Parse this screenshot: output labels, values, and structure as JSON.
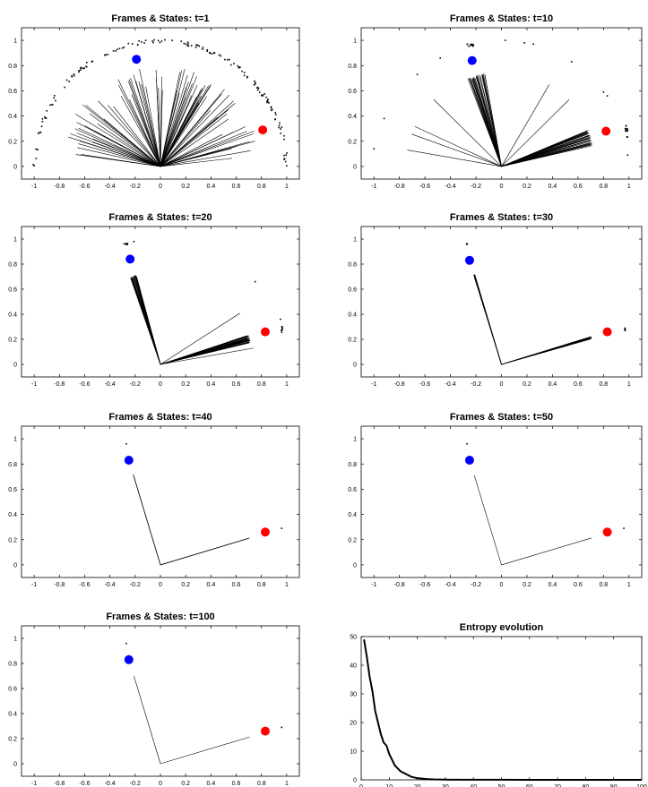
{
  "colors": {
    "axes": "#000000",
    "ink": "#000000",
    "state_a": "#0000ff",
    "state_b": "#ff0000",
    "background": "#ffffff"
  },
  "chart_data": [
    {
      "type": "scatter",
      "title": "Frames & States: t=1",
      "xlim": [
        -1.1,
        1.1
      ],
      "ylim": [
        -0.1,
        1.1
      ],
      "xticks": [
        "-1",
        "-0.8",
        "-0.6",
        "-0.4",
        "-0.2",
        "0",
        "0.2",
        "0.4",
        "0.6",
        "0.8",
        "1"
      ],
      "yticks": [
        "0",
        "0.2",
        "0.4",
        "0.6",
        "0.8",
        "1"
      ],
      "grid": false,
      "states": [
        {
          "x": -0.19,
          "y": 0.85,
          "color": "blue"
        },
        {
          "x": 0.81,
          "y": 0.29,
          "color": "red"
        }
      ],
      "frames": {
        "dist": "spread",
        "count": 90,
        "min_angle_deg": 6,
        "max_angle_deg": 174,
        "length_min": 0.55,
        "length_max": 0.8
      },
      "particles": {
        "dist": "semicircle",
        "count": 150,
        "radius": 1.0
      }
    },
    {
      "type": "scatter",
      "title": "Frames & States: t=10",
      "xlim": [
        -1.1,
        1.1
      ],
      "ylim": [
        -0.1,
        1.1
      ],
      "xticks": [
        "-1",
        "-0.8",
        "-0.6",
        "-0.4",
        "-0.2",
        "0",
        "0.2",
        "0.4",
        "0.6",
        "0.8",
        "1"
      ],
      "yticks": [
        "0",
        "0.2",
        "0.4",
        "0.6",
        "0.8",
        "1"
      ],
      "grid": false,
      "states": [
        {
          "x": -0.23,
          "y": 0.84,
          "color": "blue"
        },
        {
          "x": 0.82,
          "y": 0.28,
          "color": "red"
        }
      ],
      "frames": {
        "dist": "two_clusters",
        "clusters": [
          {
            "center_deg": 105,
            "spread_deg": 6,
            "count": 30,
            "length": 0.75
          },
          {
            "center_deg": 18,
            "spread_deg": 5,
            "count": 35,
            "length": 0.74
          }
        ],
        "outliers_deg": [
          170,
          160,
          155,
          135,
          60,
          45
        ]
      },
      "particles": {
        "dist": "clusters",
        "groups": [
          {
            "x": -0.25,
            "y": 0.96,
            "n": 12,
            "sx": 0.03,
            "sy": 0.01
          },
          {
            "x": 0.98,
            "y": 0.28,
            "n": 14,
            "sx": 0.01,
            "sy": 0.05
          }
        ],
        "scatter": [
          [
            -0.92,
            0.38
          ],
          [
            -1.0,
            0.14
          ],
          [
            -0.66,
            0.73
          ],
          [
            -0.48,
            0.86
          ],
          [
            0.03,
            1.0
          ],
          [
            0.18,
            0.98
          ],
          [
            0.25,
            0.97
          ],
          [
            0.55,
            0.83
          ],
          [
            0.8,
            0.59
          ],
          [
            0.83,
            0.56
          ],
          [
            0.99,
            0.09
          ]
        ]
      }
    },
    {
      "type": "scatter",
      "title": "Frames & States: t=20",
      "xlim": [
        -1.1,
        1.1
      ],
      "ylim": [
        -0.1,
        1.1
      ],
      "xticks": [
        "-1",
        "-0.8",
        "-0.6",
        "-0.4",
        "-0.2",
        "0",
        "0.2",
        "0.4",
        "0.6",
        "0.8",
        "1"
      ],
      "yticks": [
        "0",
        "0.2",
        "0.4",
        "0.6",
        "0.8",
        "1"
      ],
      "grid": false,
      "states": [
        {
          "x": -0.24,
          "y": 0.84,
          "color": "blue"
        },
        {
          "x": 0.83,
          "y": 0.26,
          "color": "red"
        }
      ],
      "frames": {
        "dist": "two_clusters",
        "clusters": [
          {
            "center_deg": 107,
            "spread_deg": 2,
            "count": 30,
            "length": 0.74
          },
          {
            "center_deg": 16,
            "spread_deg": 2.5,
            "count": 35,
            "length": 0.74
          }
        ],
        "outliers_deg": [
          33,
          10
        ]
      },
      "particles": {
        "dist": "clusters",
        "groups": [
          {
            "x": -0.28,
            "y": 0.96,
            "n": 8,
            "sx": 0.02,
            "sy": 0.005
          },
          {
            "x": 0.96,
            "y": 0.28,
            "n": 8,
            "sx": 0.005,
            "sy": 0.03
          }
        ],
        "scatter": [
          [
            -0.21,
            0.98
          ],
          [
            0.75,
            0.66
          ],
          [
            0.95,
            0.36
          ]
        ]
      }
    },
    {
      "type": "scatter",
      "title": "Frames & States: t=30",
      "xlim": [
        -1.1,
        1.1
      ],
      "ylim": [
        -0.1,
        1.1
      ],
      "xticks": [
        "-1",
        "-0.8",
        "-0.6",
        "-0.4",
        "-0.2",
        "0",
        "0.2",
        "0.4",
        "0.6",
        "0.8",
        "1"
      ],
      "yticks": [
        "0",
        "0.2",
        "0.4",
        "0.6",
        "0.8",
        "1"
      ],
      "grid": false,
      "states": [
        {
          "x": -0.25,
          "y": 0.83,
          "color": "blue"
        },
        {
          "x": 0.83,
          "y": 0.26,
          "color": "red"
        }
      ],
      "frames": {
        "dist": "two_clusters",
        "clusters": [
          {
            "center_deg": 106.7,
            "spread_deg": 0.4,
            "count": 20,
            "length": 0.75
          },
          {
            "center_deg": 16.8,
            "spread_deg": 0.7,
            "count": 25,
            "length": 0.74
          }
        ],
        "outliers_deg": []
      },
      "particles": {
        "dist": "clusters",
        "groups": [
          {
            "x": -0.27,
            "y": 0.96,
            "n": 4,
            "sx": 0.005,
            "sy": 0.003
          },
          {
            "x": 0.97,
            "y": 0.28,
            "n": 5,
            "sx": 0.003,
            "sy": 0.01
          }
        ],
        "scatter": []
      }
    },
    {
      "type": "scatter",
      "title": "Frames & States: t=40",
      "xlim": [
        -1.1,
        1.1
      ],
      "ylim": [
        -0.1,
        1.1
      ],
      "xticks": [
        "-1",
        "-0.8",
        "-0.6",
        "-0.4",
        "-0.2",
        "0",
        "0.2",
        "0.4",
        "0.6",
        "0.8",
        "1"
      ],
      "yticks": [
        "0",
        "0.2",
        "0.4",
        "0.6",
        "0.8",
        "1"
      ],
      "grid": false,
      "states": [
        {
          "x": -0.25,
          "y": 0.83,
          "color": "blue"
        },
        {
          "x": 0.83,
          "y": 0.26,
          "color": "red"
        }
      ],
      "frames": {
        "dist": "two_clusters",
        "clusters": [
          {
            "center_deg": 106.7,
            "spread_deg": 0.05,
            "count": 3,
            "length": 0.75
          },
          {
            "center_deg": 16.8,
            "spread_deg": 0.15,
            "count": 3,
            "length": 0.74
          }
        ],
        "outliers_deg": []
      },
      "particles": {
        "dist": "clusters",
        "groups": [],
        "scatter": [
          [
            -0.27,
            0.96
          ],
          [
            0.96,
            0.29
          ]
        ]
      }
    },
    {
      "type": "scatter",
      "title": "Frames & States: t=50",
      "xlim": [
        -1.1,
        1.1
      ],
      "ylim": [
        -0.1,
        1.1
      ],
      "xticks": [
        "-1",
        "-0.8",
        "-0.6",
        "-0.4",
        "-0.2",
        "0",
        "0.2",
        "0.4",
        "0.6",
        "0.8",
        "1"
      ],
      "yticks": [
        "0",
        "0.2",
        "0.4",
        "0.6",
        "0.8",
        "1"
      ],
      "grid": false,
      "states": [
        {
          "x": -0.25,
          "y": 0.83,
          "color": "blue"
        },
        {
          "x": 0.83,
          "y": 0.26,
          "color": "red"
        }
      ],
      "frames": {
        "dist": "two_clusters",
        "clusters": [
          {
            "center_deg": 106.7,
            "spread_deg": 0,
            "count": 1,
            "length": 0.75
          },
          {
            "center_deg": 16.8,
            "spread_deg": 0,
            "count": 1,
            "length": 0.74
          }
        ],
        "outliers_deg": []
      },
      "particles": {
        "dist": "clusters",
        "groups": [],
        "scatter": [
          [
            -0.27,
            0.96
          ],
          [
            0.96,
            0.29
          ]
        ]
      }
    },
    {
      "type": "scatter",
      "title": "Frames & States: t=100",
      "xlim": [
        -1.1,
        1.1
      ],
      "ylim": [
        -0.1,
        1.1
      ],
      "xticks": [
        "-1",
        "-0.8",
        "-0.6",
        "-0.4",
        "-0.2",
        "0",
        "0.2",
        "0.4",
        "0.6",
        "0.8",
        "1"
      ],
      "yticks": [
        "0",
        "0.2",
        "0.4",
        "0.6",
        "0.8",
        "1"
      ],
      "grid": false,
      "states": [
        {
          "x": -0.25,
          "y": 0.83,
          "color": "blue"
        },
        {
          "x": 0.83,
          "y": 0.26,
          "color": "red"
        }
      ],
      "frames": {
        "dist": "two_clusters",
        "clusters": [
          {
            "center_deg": 106.7,
            "spread_deg": 0,
            "count": 1,
            "length": 0.75
          },
          {
            "center_deg": 16.8,
            "spread_deg": 0,
            "count": 1,
            "length": 0.74
          }
        ],
        "outliers_deg": []
      },
      "particles": {
        "dist": "clusters",
        "groups": [],
        "scatter": [
          [
            -0.27,
            0.96
          ],
          [
            0.96,
            0.29
          ]
        ]
      }
    },
    {
      "type": "line",
      "title": "Entropy evolution",
      "xlabel": "",
      "ylabel": "",
      "xlim": [
        0,
        100
      ],
      "ylim": [
        0,
        50
      ],
      "xticks": [
        "0",
        "10",
        "20",
        "30",
        "40",
        "50",
        "60",
        "70",
        "80",
        "90",
        "100"
      ],
      "yticks": [
        "0",
        "10",
        "20",
        "30",
        "40",
        "50"
      ],
      "grid": false,
      "series": [
        {
          "x": [
            1,
            2,
            3,
            4,
            5,
            6,
            7,
            8,
            9,
            10,
            11,
            12,
            13,
            14,
            15,
            16,
            17,
            18,
            19,
            20,
            21,
            22,
            23,
            24,
            25,
            26,
            28,
            30,
            35,
            40,
            50,
            60,
            70,
            80,
            90,
            100
          ],
          "values": [
            49,
            43,
            36,
            31,
            24,
            20,
            16,
            13,
            12,
            9,
            7,
            5,
            4,
            3,
            2.5,
            2,
            1.5,
            1,
            0.8,
            0.6,
            0.5,
            0.4,
            0.3,
            0.25,
            0.2,
            0.15,
            0.1,
            0.08,
            0.05,
            0.03,
            0.02,
            0.01,
            0.01,
            0.01,
            0,
            0
          ]
        }
      ]
    }
  ]
}
